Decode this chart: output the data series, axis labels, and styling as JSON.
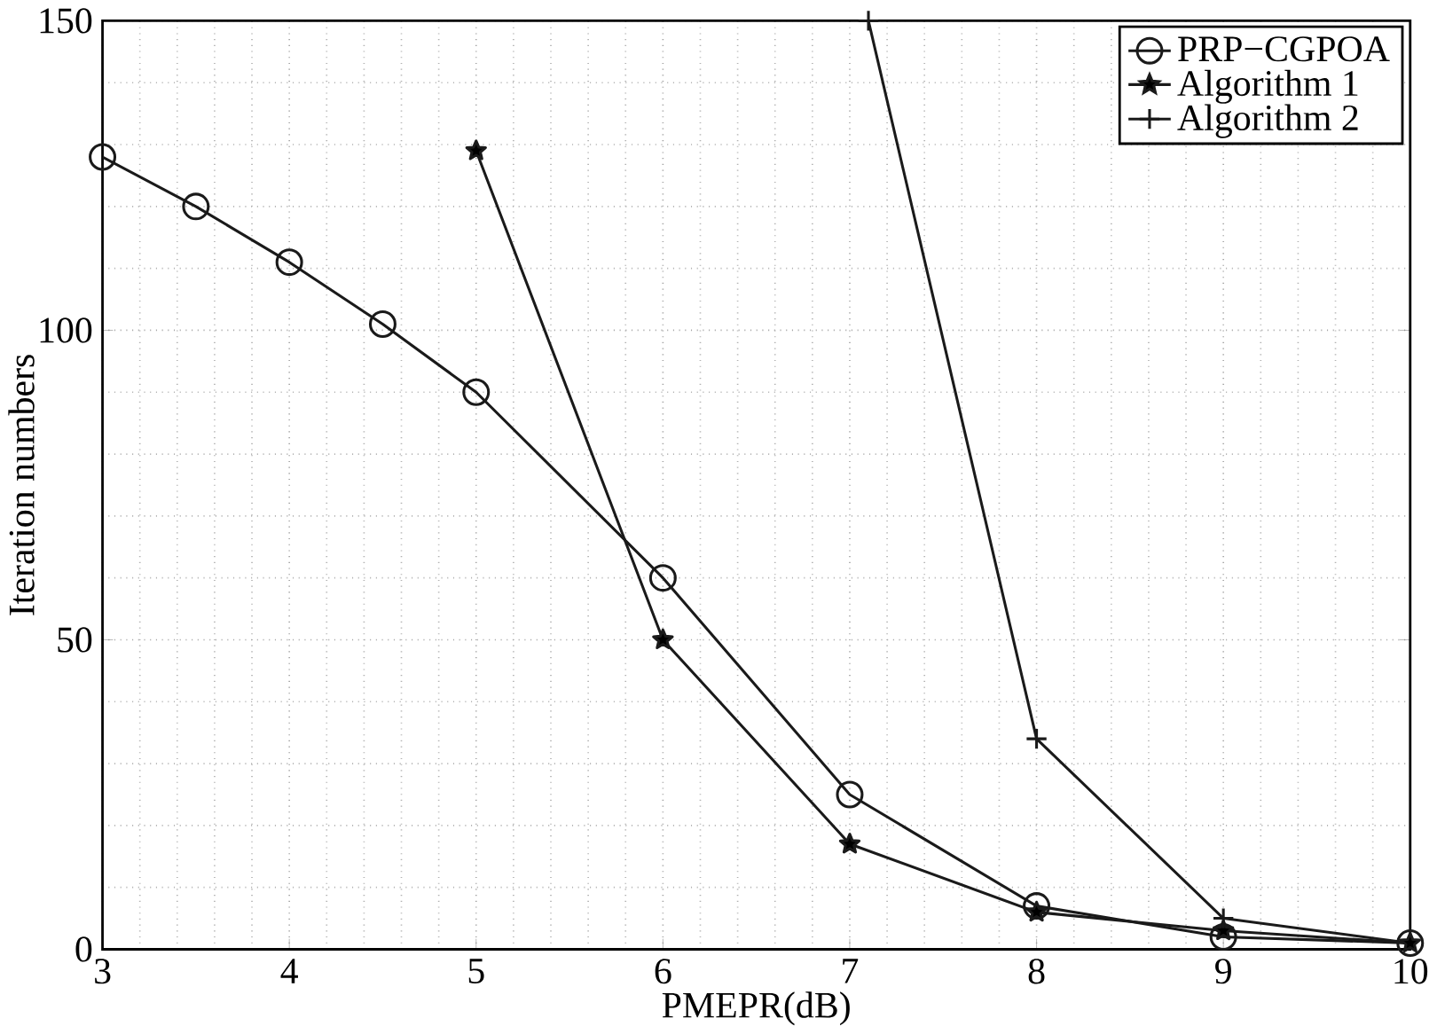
{
  "chart_data": {
    "type": "line",
    "xlabel": "PMEPR(dB)",
    "ylabel": "Iteration numbers",
    "xlim": [
      3,
      10
    ],
    "ylim": [
      0,
      150
    ],
    "xticks": [
      3,
      4,
      5,
      6,
      7,
      8,
      9,
      10
    ],
    "yticks": [
      0,
      50,
      100,
      150
    ],
    "grid": true,
    "legend": "top right",
    "line_style": "solid",
    "series": [
      {
        "name": "PRP−CGPOA",
        "color": "#1a1a1a",
        "marker": "circle",
        "x": [
          3,
          3.5,
          4,
          4.5,
          5,
          6,
          7,
          8,
          9,
          10
        ],
        "values": [
          128,
          120,
          111,
          101,
          90,
          60,
          25,
          7,
          2,
          1
        ]
      },
      {
        "name": "Algorithm 1",
        "color": "#1a1a1a",
        "marker": "star",
        "x": [
          5,
          6,
          7,
          8,
          9,
          10
        ],
        "values": [
          129,
          50,
          17,
          6,
          3,
          1
        ]
      },
      {
        "name": "Algorithm 2",
        "color": "#1a1a1a",
        "marker": "cross",
        "x": [
          7.1,
          8,
          9,
          10
        ],
        "values": [
          150,
          34,
          5,
          1
        ]
      }
    ]
  }
}
